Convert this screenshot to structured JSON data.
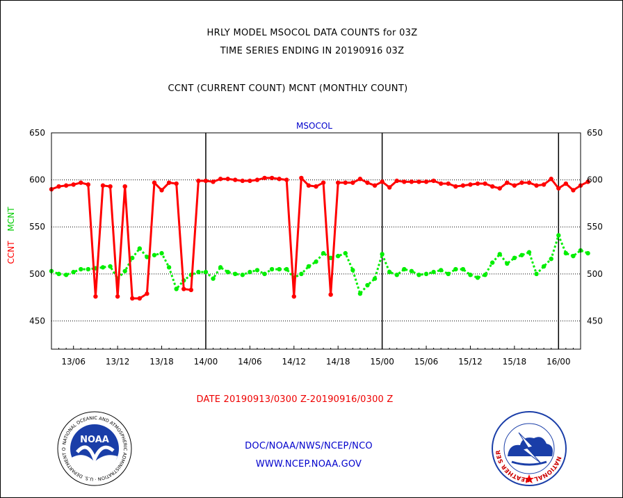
{
  "header": {
    "title_line1": "HRLY MODEL MSOCOL DATA COUNTS for 03Z",
    "title_line2": "TIME SERIES ENDING IN 20190916 03Z",
    "title_line3": "CCNT (CURRENT COUNT) MCNT (MONTHLY COUNT)"
  },
  "chart_data": {
    "type": "line",
    "title": "MSOCOL",
    "ylabel_ccnt": "CCNT",
    "ylabel_mcnt": "MCNT",
    "ylim": [
      420,
      650
    ],
    "yticks": [
      "650",
      "600",
      "550",
      "500",
      "450"
    ],
    "yticks_right": [
      "650",
      "600",
      "550",
      "500",
      "450"
    ],
    "xlim": [
      0,
      72
    ],
    "xticks": [
      "13/06",
      "13/12",
      "13/18",
      "14/00",
      "14/06",
      "14/12",
      "14/18",
      "15/00",
      "15/06",
      "15/12",
      "15/18",
      "16/00"
    ],
    "day_boundaries_hours": [
      21,
      45,
      69
    ],
    "grid_y": true,
    "series": [
      {
        "name": "CCNT",
        "color": "#ff0000",
        "values": [
          590,
          593,
          594,
          595,
          597,
          595,
          476,
          594,
          593,
          476,
          593,
          474,
          474,
          479,
          597,
          589,
          597,
          596,
          484,
          483,
          599,
          599,
          598,
          601,
          601,
          600,
          599,
          599,
          600,
          602,
          602,
          601,
          600,
          476,
          602,
          594,
          593,
          597,
          478,
          597,
          597,
          597,
          601,
          597,
          594,
          598,
          592,
          599,
          598,
          598,
          598,
          598,
          599,
          596,
          596,
          593,
          594,
          595,
          596,
          596,
          593,
          591,
          597,
          594,
          597,
          597,
          594,
          595,
          601,
          591,
          596,
          589,
          594,
          598
        ]
      },
      {
        "name": "MCNT",
        "color": "#00ee00",
        "values": [
          503,
          500,
          499,
          502,
          505,
          505,
          506,
          507,
          508,
          495,
          503,
          517,
          527,
          518,
          520,
          522,
          507,
          484,
          493,
          499,
          502,
          502,
          495,
          507,
          502,
          500,
          499,
          502,
          504,
          500,
          505,
          505,
          505,
          496,
          500,
          508,
          513,
          522,
          517,
          519,
          522,
          504,
          479,
          488,
          495,
          521,
          502,
          499,
          505,
          503,
          499,
          500,
          502,
          504,
          500,
          505,
          505,
          499,
          496,
          499,
          512,
          521,
          511,
          517,
          520,
          523,
          500,
          508,
          516,
          541,
          522,
          519,
          525,
          522
        ]
      }
    ]
  },
  "footer": {
    "date_range": "DATE 20190913/0300 Z-20190916/0300 Z",
    "org": "DOC/NOAA/NWS/NCEP/NCO",
    "url": "WWW.NCEP.NOAA.GOV"
  },
  "logos": {
    "noaa_text": "NOAA",
    "noaa_ring_text": "NATIONAL OCEANIC AND ATMOSPHERIC ADMINISTRATION · U.S. DEPARTMENT OF COMMERCE ·",
    "nws_ring_text": "NATIONAL WEATHER SERVICE"
  },
  "colors": {
    "ccnt": "#ff0000",
    "mcnt": "#00ee00",
    "title_blue": "#0000cc",
    "date_red": "#ee0000",
    "footer_blue": "#0000cc"
  }
}
